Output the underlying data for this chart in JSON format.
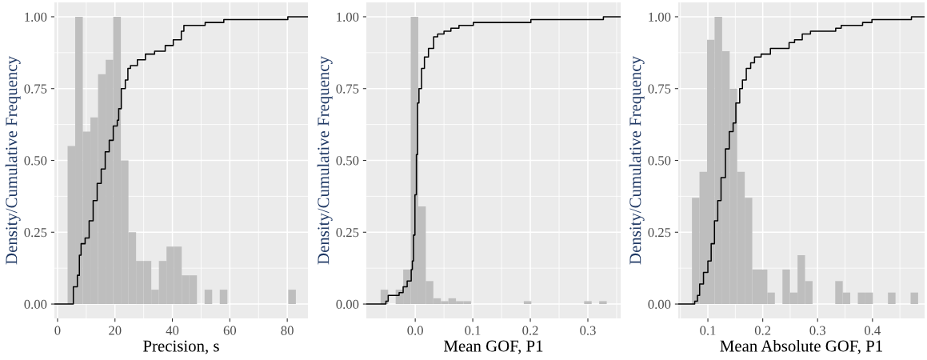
{
  "chart_data": [
    {
      "type": "histogram",
      "xlabel": "Precision, s",
      "ylabel": "Density/Cumulative Frequency",
      "color": "#bebebe",
      "grid": true,
      "bins": [
        3.5,
        6.15,
        8.8,
        11.45,
        14.1,
        16.75,
        19.4,
        22.05,
        24.7,
        27.35,
        30,
        32.65,
        35.3,
        37.95,
        40.6,
        43.25,
        45.9,
        48.55,
        51.2,
        53.85,
        56.5,
        59.15,
        61.8,
        64.45,
        67.1,
        69.75,
        72.4,
        75.05,
        77.7,
        80.35,
        83
      ],
      "values": [
        0.55,
        1,
        0.6,
        0.65,
        0.8,
        0.85,
        1,
        0.5,
        0.25,
        0.15,
        0.15,
        0.05,
        0.15,
        0.2,
        0.2,
        0.1,
        0.1,
        0,
        0.05,
        0,
        0.05,
        0,
        0,
        0,
        0,
        0,
        0,
        0,
        0,
        0.05
      ],
      "series": [
        {
          "type": "step",
          "color": "#000000",
          "x": [
            -1.1,
            4.1,
            5.5,
            6.9,
            7.6,
            8.2,
            9.6,
            11.0,
            12.4,
            13.8,
            15.2,
            16.6,
            18.0,
            19.4,
            20.8,
            21.3,
            22.2,
            23.6,
            24.5,
            25.4,
            27.8,
            30.6,
            33.8,
            35.7,
            37.5,
            40.3,
            43.1,
            44.0,
            47.7,
            51.4,
            57.9,
            80.2,
            87.2
          ],
          "values": [
            0,
            0,
            0.06,
            0.1,
            0.17,
            0.21,
            0.23,
            0.29,
            0.36,
            0.42,
            0.47,
            0.53,
            0.57,
            0.62,
            0.64,
            0.68,
            0.75,
            0.78,
            0.82,
            0.83,
            0.85,
            0.87,
            0.88,
            0.88,
            0.9,
            0.92,
            0.95,
            0.97,
            0.97,
            0.98,
            0.99,
            1,
            1
          ]
        }
      ],
      "xlim": [
        -1.1,
        87.2
      ],
      "xticks": [
        0,
        20,
        40,
        60,
        80
      ],
      "ylim": [
        -0.05,
        1.05
      ],
      "yticks": [
        {
          "value": 0,
          "label": "0.00"
        },
        {
          "value": 0.25,
          "label": "0.25"
        },
        {
          "value": 0.5,
          "label": "0.50"
        },
        {
          "value": 0.75,
          "label": "0.75"
        },
        {
          "value": 1,
          "label": "1.00"
        }
      ]
    },
    {
      "type": "histogram",
      "xlabel": "Mean GOF, P1",
      "ylabel": "Density/Cumulative Frequency",
      "color": "#bebebe",
      "grid": true,
      "bins": [
        -0.0602,
        -0.0471,
        -0.034,
        -0.0209,
        -0.0078,
        0.0053,
        0.0184,
        0.0315,
        0.0446,
        0.0577,
        0.0708,
        0.0839,
        0.097,
        0.1101,
        0.1232,
        0.1363,
        0.1494,
        0.1625,
        0.1756,
        0.1887,
        0.2018,
        0.2149,
        0.228,
        0.2411,
        0.2542,
        0.2673,
        0.2804,
        0.2935,
        0.3066,
        0.3197,
        0.3328
      ],
      "values": [
        0.05,
        0,
        0.05,
        0.12,
        1,
        0.34,
        0.08,
        0.02,
        0.01,
        0.02,
        0.01,
        0.01,
        0,
        0,
        0,
        0,
        0,
        0,
        0,
        0.01,
        0,
        0,
        0,
        0,
        0,
        0,
        0,
        0.01,
        0,
        0.01
      ],
      "series": [
        {
          "type": "step",
          "color": "#000000",
          "x": [
            -0.085,
            -0.056,
            -0.051,
            -0.047,
            -0.031,
            -0.028,
            -0.021,
            -0.014,
            -0.007,
            -0.005,
            -0.003,
            -0.0005,
            0.002,
            0.004,
            0.0065,
            0.011,
            0.016,
            0.023,
            0.032,
            0.039,
            0.05,
            0.062,
            0.076,
            0.085,
            0.101,
            0.201,
            0.298,
            0.327,
            0.357
          ],
          "values": [
            0,
            0,
            0.01,
            0.03,
            0.03,
            0.04,
            0.06,
            0.08,
            0.12,
            0.15,
            0.24,
            0.38,
            0.52,
            0.7,
            0.75,
            0.82,
            0.86,
            0.89,
            0.93,
            0.94,
            0.95,
            0.96,
            0.97,
            0.97,
            0.98,
            0.99,
            0.99,
            1,
            1
          ]
        }
      ],
      "xlim": [
        -0.085,
        0.357
      ],
      "xticks": [
        {
          "value": 0,
          "label": "0.0"
        },
        0.1,
        0.2,
        0.3
      ],
      "ylim": [
        -0.05,
        1.05
      ],
      "yticks": [
        {
          "value": 0,
          "label": "0.00"
        },
        {
          "value": 0.25,
          "label": "0.25"
        },
        {
          "value": 0.5,
          "label": "0.50"
        },
        {
          "value": 0.75,
          "label": "0.75"
        },
        {
          "value": 1,
          "label": "1.00"
        }
      ]
    },
    {
      "type": "histogram",
      "xlabel": "Mean Absolute GOF, P1",
      "ylabel": "Density/Cumulative Frequency",
      "color": "#bebebe",
      "grid": true,
      "bins": [
        0.071,
        0.0847,
        0.0985,
        0.1122,
        0.126,
        0.1397,
        0.1534,
        0.1672,
        0.1809,
        0.1947,
        0.2084,
        0.2221,
        0.2359,
        0.2496,
        0.2634,
        0.2771,
        0.2908,
        0.3046,
        0.3183,
        0.3321,
        0.3458,
        0.3595,
        0.3733,
        0.387,
        0.4008,
        0.4145,
        0.4282,
        0.442,
        0.4557,
        0.4695,
        0.4832
      ],
      "values": [
        0.37,
        0.46,
        0.92,
        1,
        0.88,
        0.75,
        0.46,
        0.37,
        0.12,
        0.12,
        0.04,
        0,
        0.12,
        0.04,
        0.17,
        0.08,
        0,
        0,
        0,
        0.08,
        0.04,
        0,
        0.04,
        0.04,
        0,
        0,
        0.04,
        0,
        0,
        0.04
      ],
      "series": [
        {
          "type": "step",
          "color": "#000000",
          "x": [
            0.046,
            0.072,
            0.076,
            0.081,
            0.085,
            0.092,
            0.1,
            0.106,
            0.112,
            0.118,
            0.124,
            0.132,
            0.139,
            0.146,
            0.151,
            0.158,
            0.163,
            0.17,
            0.178,
            0.185,
            0.197,
            0.214,
            0.241,
            0.248,
            0.258,
            0.272,
            0.287,
            0.333,
            0.343,
            0.382,
            0.399,
            0.433,
            0.471,
            0.495
          ],
          "values": [
            0,
            0,
            0.01,
            0.03,
            0.07,
            0.11,
            0.15,
            0.21,
            0.29,
            0.36,
            0.44,
            0.54,
            0.6,
            0.63,
            0.7,
            0.75,
            0.78,
            0.82,
            0.84,
            0.86,
            0.87,
            0.89,
            0.89,
            0.91,
            0.92,
            0.94,
            0.95,
            0.96,
            0.97,
            0.98,
            0.99,
            0.99,
            1,
            1
          ]
        }
      ],
      "xlim": [
        0.046,
        0.495
      ],
      "xticks": [
        0.1,
        0.2,
        0.3,
        0.4
      ],
      "ylim": [
        -0.05,
        1.05
      ],
      "yticks": [
        {
          "value": 0,
          "label": "0.00"
        },
        {
          "value": 0.25,
          "label": "0.25"
        },
        {
          "value": 0.5,
          "label": "0.50"
        },
        {
          "value": 0.75,
          "label": "0.75"
        },
        {
          "value": 1,
          "label": "1.00"
        }
      ]
    }
  ]
}
